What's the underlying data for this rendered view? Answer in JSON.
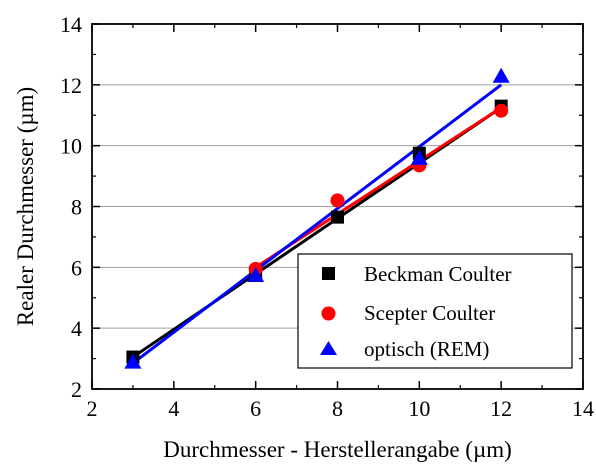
{
  "chart_data": {
    "type": "scatter",
    "title": "",
    "xlabel": "Durchmesser - Herstellerangabe (µm)",
    "ylabel": "Realer Durchmesser (µm)",
    "xlim": [
      2,
      14
    ],
    "ylim": [
      2,
      14
    ],
    "xticks": [
      "2",
      "4",
      "6",
      "8",
      "10",
      "12",
      "14"
    ],
    "yticks": [
      "2",
      "4",
      "6",
      "8",
      "10",
      "12",
      "14"
    ],
    "grid": "horizontal gridlines at each major y tick",
    "legend_position": "bottom-right",
    "series": [
      {
        "name": "Beckman Coulter",
        "marker": "square",
        "color": "#000000",
        "x": [
          3,
          6,
          8,
          10,
          12
        ],
        "y": [
          3.05,
          5.8,
          7.65,
          9.75,
          11.3
        ],
        "fit_line": [
          [
            3,
            3.05
          ],
          [
            12,
            11.25
          ]
        ]
      },
      {
        "name": "Scepter Coulter",
        "marker": "circle",
        "color": "#ff0000",
        "x": [
          6,
          8,
          10,
          12
        ],
        "y": [
          5.95,
          8.2,
          9.35,
          11.15
        ],
        "fit_line": [
          [
            6,
            6.0
          ],
          [
            12,
            11.25
          ]
        ]
      },
      {
        "name": "optisch (REM)",
        "marker": "triangle",
        "color": "#0000ff",
        "x": [
          3,
          6,
          10,
          12
        ],
        "y": [
          2.9,
          5.75,
          9.6,
          12.3
        ],
        "fit_line": [
          [
            3,
            2.85
          ],
          [
            12,
            12.0
          ]
        ]
      }
    ]
  }
}
